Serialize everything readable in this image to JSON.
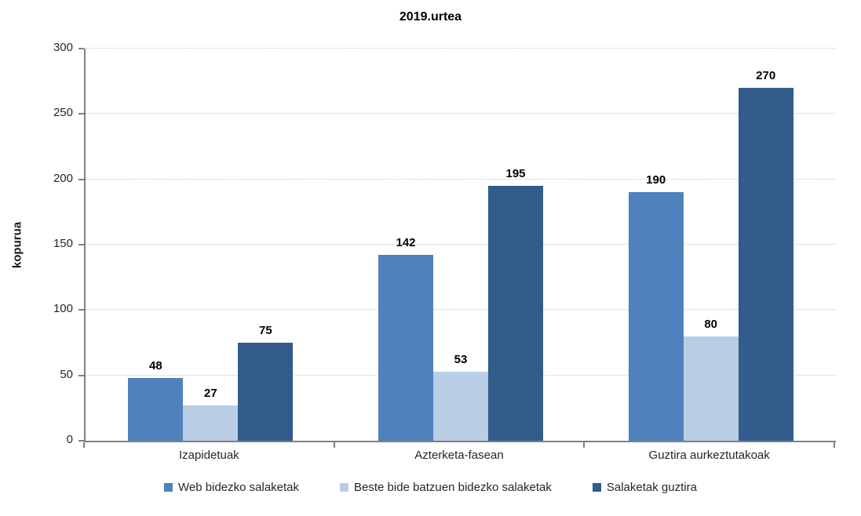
{
  "chart_data": {
    "type": "bar",
    "title": "2019.urtea",
    "xlabel": "",
    "ylabel": "kopurua",
    "ylim": [
      0,
      300
    ],
    "yticks": [
      0,
      50,
      100,
      150,
      200,
      250,
      300
    ],
    "grid": true,
    "legend_position": "bottom",
    "categories": [
      "Izapidetuak",
      "Azterketa-fasean",
      "Guztira aurkeztutakoak"
    ],
    "series": [
      {
        "name": "Web bidezko salaketak",
        "color": "#4F81BD",
        "values": [
          48,
          142,
          190
        ]
      },
      {
        "name": "Beste bide batzuen bidezko salaketak",
        "color": "#B9CDE5",
        "values": [
          27,
          53,
          80
        ]
      },
      {
        "name": "Salaketak guztira",
        "color": "#315C8C",
        "values": [
          75,
          195,
          270
        ]
      }
    ]
  },
  "colors": {
    "axis": "#808080",
    "gridline": "#C9C9C9",
    "tick_text": "#262626",
    "value_label": "#000000",
    "background": "#FFFFFF"
  }
}
